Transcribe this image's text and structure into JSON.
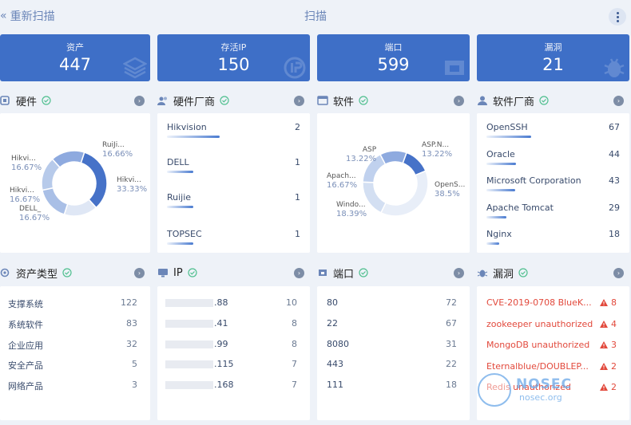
{
  "header": {
    "back_label": "重新扫描",
    "title": "扫描"
  },
  "stats": [
    {
      "label": "资产",
      "value": "447"
    },
    {
      "label": "存活IP",
      "value": "150"
    },
    {
      "label": "端口",
      "value": "599"
    },
    {
      "label": "漏洞",
      "value": "21"
    }
  ],
  "hardware": {
    "title": "硬件",
    "chart_data": {
      "type": "pie",
      "categories": [
        "Hikvi...",
        "RuiJi...",
        "Hikvi...",
        "DELL_",
        "Hikvi..."
      ],
      "values": [
        33.33,
        16.66,
        16.67,
        16.67,
        16.67
      ],
      "labels": [
        "33.33%",
        "16.66%",
        "16.67%",
        "16.67%",
        "16.67%"
      ],
      "title": ""
    }
  },
  "hardware_vendor": {
    "title": "硬件厂商",
    "items": [
      {
        "name": "Hikvision",
        "count": "2"
      },
      {
        "name": "DELL",
        "count": "1"
      },
      {
        "name": "Ruijie",
        "count": "1"
      },
      {
        "name": "TOPSEC",
        "count": "1"
      }
    ]
  },
  "software": {
    "title": "软件",
    "chart_data": {
      "type": "pie",
      "categories": [
        "ASP.N...",
        "OpenS...",
        "Windo...",
        "Apach...",
        "ASP"
      ],
      "values": [
        13.22,
        38.5,
        18.39,
        16.67,
        13.22
      ],
      "labels": [
        "13.22%",
        "38.5%",
        "18.39%",
        "16.67%",
        "13.22%"
      ],
      "title": ""
    }
  },
  "software_vendor": {
    "title": "软件厂商",
    "items": [
      {
        "name": "OpenSSH",
        "count": "67"
      },
      {
        "name": "Oracle",
        "count": "44"
      },
      {
        "name": "Microsoft Corporation",
        "count": "43"
      },
      {
        "name": "Apache Tomcat",
        "count": "29"
      },
      {
        "name": "Nginx",
        "count": "18"
      }
    ]
  },
  "asset_type": {
    "title": "资产类型",
    "items": [
      {
        "name": "支撑系统",
        "count": "122"
      },
      {
        "name": "系统软件",
        "count": "83"
      },
      {
        "name": "企业应用",
        "count": "32"
      },
      {
        "name": "安全产品",
        "count": "5"
      },
      {
        "name": "网络产品",
        "count": "3"
      }
    ]
  },
  "ip": {
    "title": "IP",
    "items": [
      {
        "name": ".88",
        "count": "10"
      },
      {
        "name": ".41",
        "count": "8"
      },
      {
        "name": ".99",
        "count": "8"
      },
      {
        "name": ".115",
        "count": "7"
      },
      {
        "name": ".168",
        "count": "7"
      }
    ]
  },
  "ports": {
    "title": "端口",
    "items": [
      {
        "name": "80",
        "count": "72"
      },
      {
        "name": "22",
        "count": "67"
      },
      {
        "name": "8080",
        "count": "31"
      },
      {
        "name": "443",
        "count": "22"
      },
      {
        "name": "111",
        "count": "18"
      }
    ]
  },
  "vulns": {
    "title": "漏洞",
    "items": [
      {
        "name": "CVE-2019-0708 BlueK...",
        "count": "8"
      },
      {
        "name": "zookeeper unauthorized",
        "count": "4"
      },
      {
        "name": "MongoDB unauthorized",
        "count": "3"
      },
      {
        "name": "Eternalblue/DOUBLEP...",
        "count": "2"
      },
      {
        "name": "Redis unauthorized",
        "count": "2"
      }
    ]
  },
  "watermark": {
    "brand": "NOSEC",
    "url": "nosec.org"
  },
  "colors": {
    "accent": "#3e6fc7",
    "danger": "#e2493c",
    "check": "#4fbf8f"
  }
}
